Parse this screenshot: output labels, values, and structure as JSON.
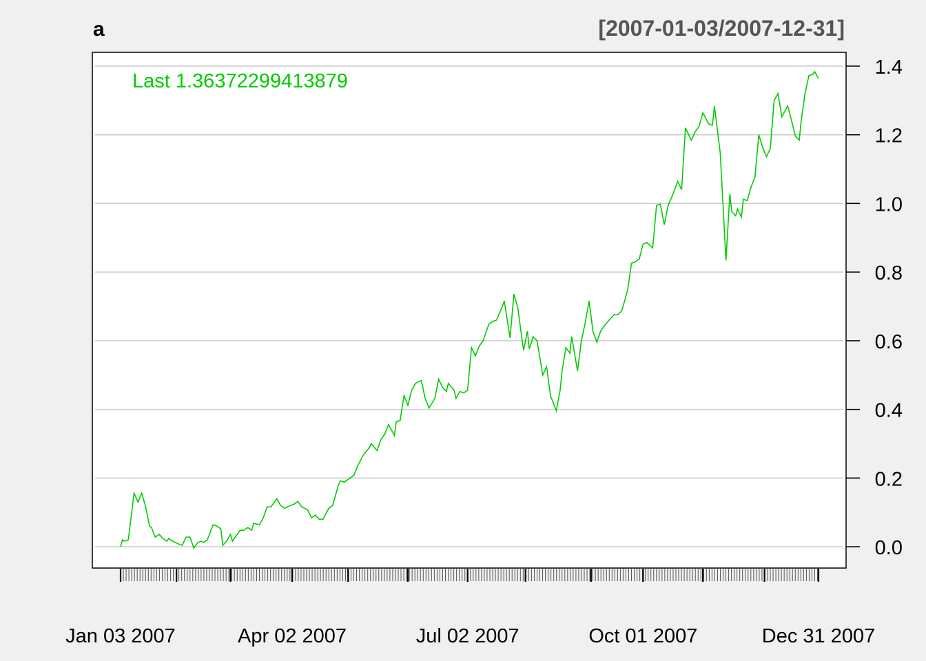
{
  "chart_data": {
    "type": "line",
    "title": "a",
    "date_range_label": "[2007-01-03/2007-12-31]",
    "last_label": "Last 1.36372299413879",
    "xlim": [
      "2007-01-03",
      "2007-12-31"
    ],
    "ylim": [
      -0.06,
      1.44
    ],
    "y_ticks": [
      0.0,
      0.2,
      0.4,
      0.6,
      0.8,
      1.0,
      1.2,
      1.4
    ],
    "y_tick_labels": [
      "0.0",
      "0.2",
      "0.4",
      "0.6",
      "0.8",
      "1.0",
      "1.2",
      "1.4"
    ],
    "x_tick_labels": [
      {
        "date": "2007-01-03",
        "label": "Jan 03 2007"
      },
      {
        "date": "2007-04-02",
        "label": "Apr 02 2007"
      },
      {
        "date": "2007-07-02",
        "label": "Jul 02 2007"
      },
      {
        "date": "2007-10-01",
        "label": "Oct 01 2007"
      },
      {
        "date": "2007-12-31",
        "label": "Dec 31 2007"
      }
    ],
    "y_axis_side": "right",
    "grid": true,
    "colors": {
      "series": "#00cc00",
      "grid": "#cccccc",
      "background": "#f0f0f0",
      "panel": "#ffffff",
      "range_label": "#555555"
    },
    "series": [
      {
        "x": [
          "2007-01-03",
          "2007-01-04",
          "2007-01-05",
          "2007-01-07",
          "2007-01-10",
          "2007-01-12",
          "2007-01-14",
          "2007-01-16",
          "2007-01-18",
          "2007-01-19",
          "2007-01-21",
          "2007-01-23",
          "2007-01-25",
          "2007-01-27",
          "2007-01-28",
          "2007-01-30",
          "2007-02-02",
          "2007-02-04",
          "2007-02-06",
          "2007-02-08",
          "2007-02-10",
          "2007-02-12",
          "2007-02-14",
          "2007-02-15",
          "2007-02-17",
          "2007-02-20",
          "2007-02-22",
          "2007-02-24",
          "2007-02-25",
          "2007-02-27",
          "2007-03-01",
          "2007-03-02",
          "2007-03-04",
          "2007-03-06",
          "2007-03-08",
          "2007-03-10",
          "2007-03-12",
          "2007-03-13",
          "2007-03-16",
          "2007-03-18",
          "2007-03-20",
          "2007-03-22",
          "2007-03-25",
          "2007-03-27",
          "2007-03-29",
          "2007-04-01",
          "2007-04-03",
          "2007-04-05",
          "2007-04-07",
          "2007-04-10",
          "2007-04-12",
          "2007-04-14",
          "2007-04-16",
          "2007-04-18",
          "2007-04-21",
          "2007-04-23",
          "2007-04-26",
          "2007-04-27",
          "2007-04-29",
          "2007-05-02",
          "2007-05-04",
          "2007-05-06",
          "2007-05-09",
          "2007-05-12",
          "2007-05-13",
          "2007-05-16",
          "2007-05-18",
          "2007-05-20",
          "2007-05-22",
          "2007-05-25",
          "2007-05-26",
          "2007-05-28",
          "2007-05-30",
          "2007-06-01",
          "2007-06-03",
          "2007-06-05",
          "2007-06-08",
          "2007-06-10",
          "2007-06-12",
          "2007-06-15",
          "2007-06-17",
          "2007-06-19",
          "2007-06-21",
          "2007-06-22",
          "2007-06-25",
          "2007-06-26",
          "2007-06-28",
          "2007-06-30",
          "2007-07-02",
          "2007-07-04",
          "2007-07-06",
          "2007-07-08",
          "2007-07-10",
          "2007-07-13",
          "2007-07-15",
          "2007-07-17",
          "2007-07-20",
          "2007-07-21",
          "2007-07-24",
          "2007-07-26",
          "2007-07-28",
          "2007-07-31",
          "2007-08-02",
          "2007-08-03",
          "2007-08-05",
          "2007-08-07",
          "2007-08-10",
          "2007-08-12",
          "2007-08-14",
          "2007-08-17",
          "2007-08-19",
          "2007-08-20",
          "2007-08-22",
          "2007-08-24",
          "2007-08-25",
          "2007-08-28",
          "2007-08-30",
          "2007-09-01",
          "2007-09-03",
          "2007-09-05",
          "2007-09-07",
          "2007-09-09",
          "2007-09-11",
          "2007-09-14",
          "2007-09-16",
          "2007-09-18",
          "2007-09-20",
          "2007-09-23",
          "2007-09-25",
          "2007-09-27",
          "2007-09-29",
          "2007-10-01",
          "2007-10-03",
          "2007-10-06",
          "2007-10-08",
          "2007-10-10",
          "2007-10-12",
          "2007-10-14",
          "2007-10-16",
          "2007-10-19",
          "2007-10-21",
          "2007-10-23",
          "2007-10-26",
          "2007-10-28",
          "2007-10-30",
          "2007-11-01",
          "2007-11-04",
          "2007-11-06",
          "2007-11-07",
          "2007-11-10",
          "2007-11-13",
          "2007-11-15",
          "2007-11-16",
          "2007-11-18",
          "2007-11-19",
          "2007-11-21",
          "2007-11-22",
          "2007-11-24",
          "2007-11-26",
          "2007-11-28",
          "2007-11-30",
          "2007-12-02",
          "2007-12-04",
          "2007-12-06",
          "2007-12-08",
          "2007-12-10",
          "2007-12-12",
          "2007-12-15",
          "2007-12-16",
          "2007-12-19",
          "2007-12-21",
          "2007-12-22",
          "2007-12-24",
          "2007-12-26",
          "2007-12-28",
          "2007-12-29",
          "2007-12-31"
        ],
        "y": [
          0.0,
          0.02,
          0.016,
          0.02,
          0.156,
          0.13,
          0.156,
          0.116,
          0.06,
          0.056,
          0.028,
          0.036,
          0.024,
          0.016,
          0.024,
          0.016,
          0.008,
          0.004,
          0.028,
          0.028,
          -0.004,
          0.012,
          0.016,
          0.012,
          0.02,
          0.064,
          0.06,
          0.052,
          0.004,
          0.016,
          0.036,
          0.016,
          0.032,
          0.048,
          0.048,
          0.056,
          0.048,
          0.068,
          0.064,
          0.084,
          0.116,
          0.116,
          0.14,
          0.12,
          0.112,
          0.12,
          0.124,
          0.132,
          0.116,
          0.108,
          0.084,
          0.092,
          0.08,
          0.08,
          0.112,
          0.12,
          0.18,
          0.192,
          0.188,
          0.2,
          0.208,
          0.236,
          0.268,
          0.288,
          0.3,
          0.28,
          0.312,
          0.328,
          0.356,
          0.324,
          0.364,
          0.368,
          0.44,
          0.412,
          0.456,
          0.476,
          0.484,
          0.432,
          0.404,
          0.432,
          0.488,
          0.464,
          0.452,
          0.476,
          0.456,
          0.432,
          0.452,
          0.448,
          0.456,
          0.58,
          0.556,
          0.584,
          0.6,
          0.648,
          0.656,
          0.66,
          0.7,
          0.716,
          0.608,
          0.736,
          0.696,
          0.572,
          0.628,
          0.576,
          0.612,
          0.6,
          0.5,
          0.524,
          0.44,
          0.396,
          0.456,
          0.512,
          0.58,
          0.564,
          0.612,
          0.512,
          0.6,
          0.652,
          0.716,
          0.628,
          0.596,
          0.628,
          0.644,
          0.664,
          0.676,
          0.676,
          0.688,
          0.748,
          0.826,
          0.83,
          0.838,
          0.882,
          0.886,
          0.87,
          0.994,
          0.998,
          0.938,
          0.994,
          1.02,
          1.064,
          1.04,
          1.22,
          1.184,
          1.208,
          1.224,
          1.264,
          1.232,
          1.228,
          1.284,
          1.148,
          0.834,
          1.028,
          0.976,
          0.964,
          0.984,
          0.96,
          1.012,
          1.008,
          1.048,
          1.076,
          1.2,
          1.164,
          1.136,
          1.16,
          1.3,
          1.32,
          1.252,
          1.284,
          1.264,
          1.196,
          1.184,
          1.24,
          1.32,
          1.372,
          1.376,
          1.384,
          1.3637
        ]
      }
    ]
  }
}
